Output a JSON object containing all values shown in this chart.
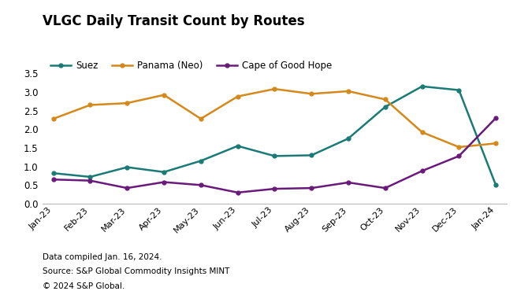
{
  "title": "VLGC Daily Transit Count by Routes",
  "labels": [
    "Jan-23",
    "Feb-23",
    "Mar-23",
    "Apr-23",
    "May-23",
    "Jun-23",
    "Jul-23",
    "Aug-23",
    "Sep-23",
    "Oct-23",
    "Nov-23",
    "Dec-23",
    "Jan-24"
  ],
  "suez": [
    0.82,
    0.72,
    0.98,
    0.85,
    1.15,
    1.55,
    1.28,
    1.3,
    1.75,
    2.6,
    3.15,
    3.05,
    0.5
  ],
  "panama": [
    2.28,
    2.65,
    2.7,
    2.92,
    2.28,
    2.88,
    3.08,
    2.95,
    3.02,
    2.8,
    1.92,
    1.52,
    1.62
  ],
  "cape": [
    0.65,
    0.62,
    0.42,
    0.58,
    0.5,
    0.3,
    0.4,
    0.42,
    0.57,
    0.42,
    0.88,
    1.28,
    2.3
  ],
  "suez_color": "#1a7b76",
  "panama_color": "#d4891a",
  "cape_color": "#6a1a7b",
  "footnote1": "Data compiled Jan. 16, 2024.",
  "footnote2": "Source: S&P Global Commodity Insights MINT",
  "footnote3": "© 2024 S&P Global.",
  "ylim": [
    0,
    3.75
  ],
  "yticks": [
    0.0,
    0.5,
    1.0,
    1.5,
    2.0,
    2.5,
    3.0,
    3.5
  ]
}
